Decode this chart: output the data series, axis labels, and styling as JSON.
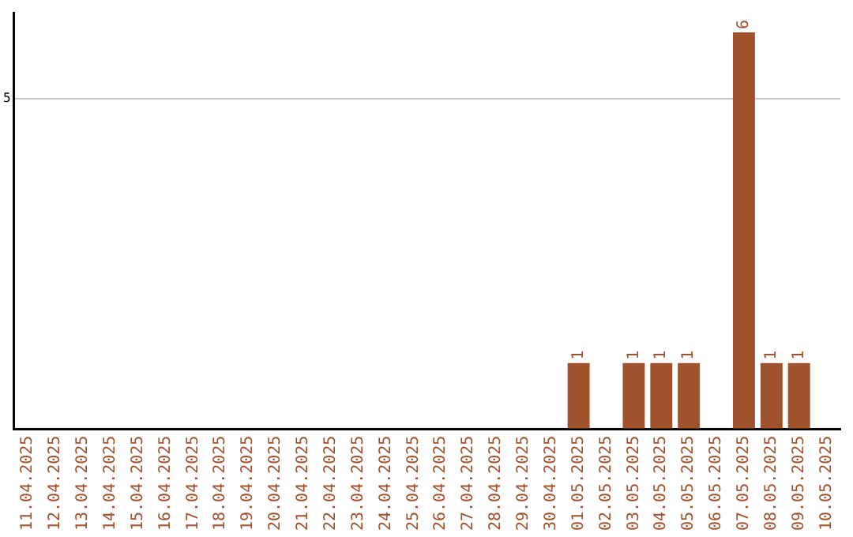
{
  "chart_data": {
    "type": "bar",
    "categories": [
      "11.04.2025",
      "12.04.2025",
      "13.04.2025",
      "14.04.2025",
      "15.04.2025",
      "16.04.2025",
      "17.04.2025",
      "18.04.2025",
      "19.04.2025",
      "20.04.2025",
      "21.04.2025",
      "22.04.2025",
      "23.04.2025",
      "24.04.2025",
      "25.04.2025",
      "26.04.2025",
      "27.04.2025",
      "28.04.2025",
      "29.04.2025",
      "30.04.2025",
      "01.05.2025",
      "02.05.2025",
      "03.05.2025",
      "04.05.2025",
      "05.05.2025",
      "06.05.2025",
      "07.05.2025",
      "08.05.2025",
      "09.05.2025",
      "10.05.2025"
    ],
    "values": [
      null,
      null,
      null,
      null,
      null,
      null,
      null,
      null,
      null,
      null,
      null,
      null,
      null,
      null,
      null,
      null,
      null,
      null,
      null,
      null,
      1,
      null,
      1,
      1,
      1,
      null,
      6,
      1,
      1,
      null
    ],
    "data_labels": true,
    "color": "#a0522d",
    "ylim": [
      0,
      6.3
    ],
    "yticks": [
      {
        "value": 0,
        "label": null
      },
      5
    ],
    "grid": "y",
    "legend": false
  }
}
